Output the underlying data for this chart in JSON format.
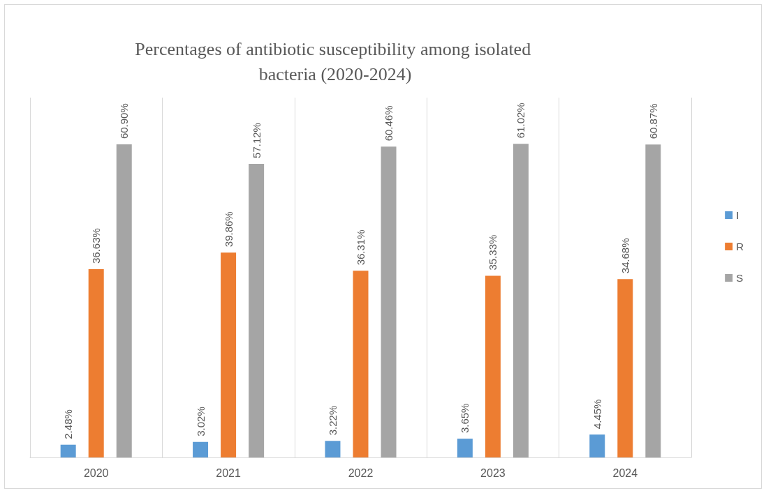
{
  "chart_data": {
    "type": "bar",
    "title": "Percentages of antibiotic susceptibility among isolated bacteria (2020-2024)",
    "categories": [
      "2020",
      "2021",
      "2022",
      "2023",
      "2024"
    ],
    "series": [
      {
        "name": "I",
        "color": "#5b9bd5",
        "values": [
          2.48,
          3.02,
          3.22,
          3.65,
          4.45
        ],
        "value_labels": [
          "2.48%",
          "3.02%",
          "3.22%",
          "3.65%",
          "4.45%"
        ]
      },
      {
        "name": "R",
        "color": "#ed7d31",
        "values": [
          36.63,
          39.86,
          36.31,
          35.33,
          34.68
        ],
        "value_labels": [
          "36.63%",
          "39.86%",
          "36.31%",
          "35.33%",
          "34.68%"
        ]
      },
      {
        "name": "S",
        "color": "#a5a5a5",
        "values": [
          60.9,
          57.12,
          60.46,
          61.02,
          60.87
        ],
        "value_labels": [
          "60.90%",
          "57.12%",
          "60.46%",
          "61.02%",
          "60.87%"
        ]
      }
    ],
    "ylim": [
      0,
      70
    ],
    "tick_labels": "x",
    "grid": "x",
    "legend": "right"
  }
}
